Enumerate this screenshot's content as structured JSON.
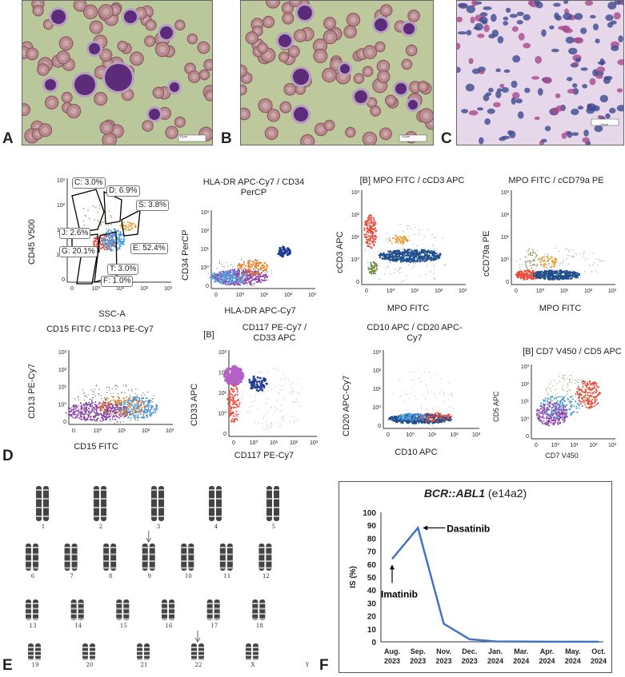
{
  "panel_labels": {
    "A": "A",
    "B": "B",
    "C": "C",
    "D": "D",
    "E": "E",
    "F": "F"
  },
  "scale_labels": {
    "a": "10μm",
    "b": "10μm",
    "c": "10μm"
  },
  "flow": {
    "p1": {
      "xlabel": "SSC-A",
      "ylabel": "CD45 V500",
      "gates": [
        "C: 3.0%",
        "D: 6.9%",
        "S: 3.8%",
        "J: 2.6%",
        "G: 20.1%",
        "E: 52.4%",
        "T: 3.0%",
        "F: 1.0%"
      ]
    },
    "p2": {
      "title": "HLA-DR APC-Cy7 / CD34 PerCP",
      "xlabel": "HLA-DR APC-Cy7",
      "ylabel": "CD34 PerCP"
    },
    "p3": {
      "title": "[B] MPO FITC / cCD3 APC",
      "xlabel": "MPO FITC",
      "ylabel": "cCD3 APC"
    },
    "p4": {
      "title": "MPO FITC / cCD79a PE",
      "xlabel": "MPO FITC",
      "ylabel": "cCD79a PE"
    },
    "p5": {
      "title": "CD15 FITC / CD13 PE-Cy7",
      "xlabel": "CD15 FITC",
      "ylabel": "CD13 PE-Cy7"
    },
    "p6": {
      "title": "CD117 PE-Cy7 / CD33 APC",
      "bracket": "[B]",
      "xlabel": "CD117 PE-Cy7",
      "ylabel": "CD33 APC"
    },
    "p7": {
      "title": "CD10 APC / CD20 APC-Cy7",
      "xlabel": "CD10 APC",
      "ylabel": "CD20 APC-Cy7"
    },
    "p8": {
      "title": "[B] CD7 V450 / CD5 APC",
      "xlabel": "CD7 V450",
      "ylabel": "CD5 APC"
    },
    "ticks_y": [
      "10³",
      "10²",
      "10¹",
      "10⁰",
      "0"
    ],
    "ticks_x": [
      "0",
      "10⁰",
      "10¹",
      "10²",
      "10³"
    ]
  },
  "karyotype": {
    "chromosomes": [
      "1",
      "2",
      "3",
      "4",
      "5",
      "6",
      "7",
      "8",
      "9",
      "10",
      "11",
      "12",
      "13",
      "14",
      "15",
      "16",
      "17",
      "18",
      "19",
      "20",
      "21",
      "22",
      "X",
      "Y"
    ]
  },
  "chart_data": {
    "type": "line",
    "title_gene": "BCR::ABL1",
    "title_suffix": " (e14a2)",
    "ylabel": "IS (%)",
    "ylim": [
      0,
      100
    ],
    "yticks": [
      "0",
      "10",
      "20",
      "30",
      "40",
      "50",
      "60",
      "70",
      "80",
      "90",
      "100"
    ],
    "categories": [
      "Aug. 2023",
      "Sep. 2023",
      "Nov. 2023",
      "Dec. 2023",
      "Jan. 2024",
      "Mar. 2024",
      "Apr. 2024",
      "May. 2024",
      "Oct. 2024"
    ],
    "cat_line1": [
      "Aug.",
      "Sep.",
      "Nov.",
      "Dec.",
      "Jan.",
      "Mar.",
      "Apr.",
      "May.",
      "Oct."
    ],
    "cat_line2": [
      "2023",
      "2023",
      "2023",
      "2023",
      "2024",
      "2024",
      "2024",
      "2024",
      "2024"
    ],
    "values": [
      64,
      88,
      14,
      2,
      0.3,
      0.2,
      0.1,
      0.1,
      0.1
    ],
    "annotations": [
      {
        "text": "Dasatinib",
        "category": "Sep. 2023"
      },
      {
        "text": "Imatinib",
        "category": "Aug. 2023"
      }
    ],
    "line_color": "#4472c4"
  }
}
